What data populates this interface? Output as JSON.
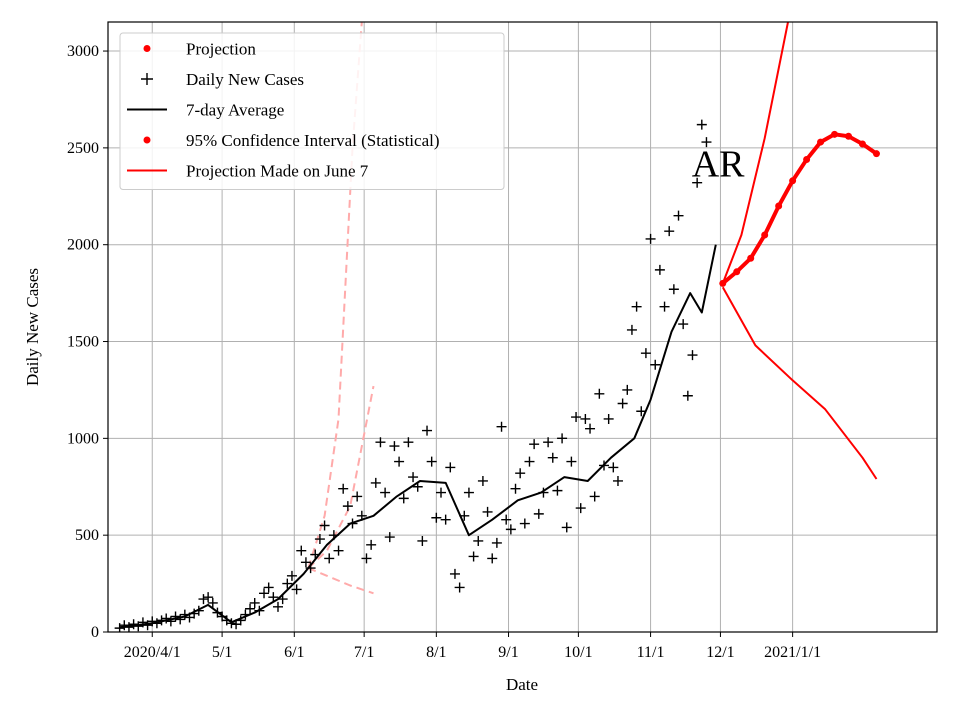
{
  "chart_data": {
    "type": "line",
    "title": "",
    "xlabel": "Date",
    "ylabel": "Daily New Cases",
    "x_range": [
      "2020-03-13",
      "2021-03-04"
    ],
    "ylim": [
      0,
      3150
    ],
    "grid": true,
    "legend_position": "top-left",
    "x_ticks": [
      {
        "date": "2020-04-01",
        "label": "2020/4/1"
      },
      {
        "date": "2020-05-01",
        "label": "5/1"
      },
      {
        "date": "2020-06-01",
        "label": "6/1"
      },
      {
        "date": "2020-07-01",
        "label": "7/1"
      },
      {
        "date": "2020-08-01",
        "label": "8/1"
      },
      {
        "date": "2020-09-01",
        "label": "9/1"
      },
      {
        "date": "2020-10-01",
        "label": "10/1"
      },
      {
        "date": "2020-11-01",
        "label": "11/1"
      },
      {
        "date": "2020-12-01",
        "label": "12/1"
      },
      {
        "date": "2021-01-01",
        "label": "2021/1/1"
      }
    ],
    "y_ticks": [
      0,
      500,
      1000,
      1500,
      2000,
      2500,
      3000
    ],
    "annotation": {
      "text": "AR",
      "date": "2020-11-30",
      "y": 2420
    },
    "legend": [
      {
        "label": "Projection",
        "marker": "dot",
        "color": "#ff0000"
      },
      {
        "label": "Daily New Cases",
        "marker": "plus",
        "color": "#000000"
      },
      {
        "label": "7-day Average",
        "marker": "line",
        "color": "#000000"
      },
      {
        "label": "95% Confidence Interval (Statistical)",
        "marker": "dot",
        "color": "#ff0000"
      },
      {
        "label": "Projection Made on June 7",
        "marker": "line",
        "color": "#ff0000"
      }
    ],
    "series": [
      {
        "name": "Daily New Cases",
        "style": "plus",
        "color": "#000000",
        "points": [
          [
            "2020-03-18",
            20
          ],
          [
            "2020-03-20",
            35
          ],
          [
            "2020-03-22",
            25
          ],
          [
            "2020-03-24",
            40
          ],
          [
            "2020-03-26",
            30
          ],
          [
            "2020-03-28",
            50
          ],
          [
            "2020-03-30",
            35
          ],
          [
            "2020-04-01",
            55
          ],
          [
            "2020-04-03",
            45
          ],
          [
            "2020-04-05",
            60
          ],
          [
            "2020-04-07",
            70
          ],
          [
            "2020-04-09",
            55
          ],
          [
            "2020-04-11",
            80
          ],
          [
            "2020-04-13",
            65
          ],
          [
            "2020-04-15",
            90
          ],
          [
            "2020-04-17",
            75
          ],
          [
            "2020-04-19",
            95
          ],
          [
            "2020-04-21",
            110
          ],
          [
            "2020-04-23",
            170
          ],
          [
            "2020-04-25",
            180
          ],
          [
            "2020-04-27",
            150
          ],
          [
            "2020-04-29",
            100
          ],
          [
            "2020-05-01",
            80
          ],
          [
            "2020-05-03",
            60
          ],
          [
            "2020-05-05",
            45
          ],
          [
            "2020-05-07",
            40
          ],
          [
            "2020-05-09",
            60
          ],
          [
            "2020-05-11",
            90
          ],
          [
            "2020-05-13",
            120
          ],
          [
            "2020-05-15",
            150
          ],
          [
            "2020-05-17",
            110
          ],
          [
            "2020-05-19",
            200
          ],
          [
            "2020-05-21",
            230
          ],
          [
            "2020-05-23",
            180
          ],
          [
            "2020-05-25",
            130
          ],
          [
            "2020-05-27",
            170
          ],
          [
            "2020-05-29",
            250
          ],
          [
            "2020-05-31",
            290
          ],
          [
            "2020-06-02",
            220
          ],
          [
            "2020-06-04",
            420
          ],
          [
            "2020-06-06",
            360
          ],
          [
            "2020-06-08",
            330
          ],
          [
            "2020-06-10",
            400
          ],
          [
            "2020-06-12",
            480
          ],
          [
            "2020-06-14",
            550
          ],
          [
            "2020-06-16",
            380
          ],
          [
            "2020-06-18",
            500
          ],
          [
            "2020-06-20",
            420
          ],
          [
            "2020-06-22",
            740
          ],
          [
            "2020-06-24",
            650
          ],
          [
            "2020-06-26",
            560
          ],
          [
            "2020-06-28",
            700
          ],
          [
            "2020-06-30",
            600
          ],
          [
            "2020-07-02",
            380
          ],
          [
            "2020-07-04",
            450
          ],
          [
            "2020-07-06",
            770
          ],
          [
            "2020-07-08",
            980
          ],
          [
            "2020-07-10",
            720
          ],
          [
            "2020-07-12",
            490
          ],
          [
            "2020-07-14",
            960
          ],
          [
            "2020-07-16",
            880
          ],
          [
            "2020-07-18",
            690
          ],
          [
            "2020-07-20",
            980
          ],
          [
            "2020-07-22",
            800
          ],
          [
            "2020-07-24",
            750
          ],
          [
            "2020-07-26",
            470
          ],
          [
            "2020-07-28",
            1040
          ],
          [
            "2020-07-30",
            880
          ],
          [
            "2020-08-01",
            590
          ],
          [
            "2020-08-03",
            720
          ],
          [
            "2020-08-05",
            580
          ],
          [
            "2020-08-07",
            850
          ],
          [
            "2020-08-09",
            300
          ],
          [
            "2020-08-11",
            230
          ],
          [
            "2020-08-13",
            600
          ],
          [
            "2020-08-15",
            720
          ],
          [
            "2020-08-17",
            390
          ],
          [
            "2020-08-19",
            470
          ],
          [
            "2020-08-21",
            780
          ],
          [
            "2020-08-23",
            620
          ],
          [
            "2020-08-25",
            380
          ],
          [
            "2020-08-27",
            460
          ],
          [
            "2020-08-29",
            1060
          ],
          [
            "2020-08-31",
            580
          ],
          [
            "2020-09-02",
            530
          ],
          [
            "2020-09-04",
            740
          ],
          [
            "2020-09-06",
            820
          ],
          [
            "2020-09-08",
            560
          ],
          [
            "2020-09-10",
            880
          ],
          [
            "2020-09-12",
            970
          ],
          [
            "2020-09-14",
            610
          ],
          [
            "2020-09-16",
            720
          ],
          [
            "2020-09-18",
            980
          ],
          [
            "2020-09-20",
            900
          ],
          [
            "2020-09-22",
            730
          ],
          [
            "2020-09-24",
            1000
          ],
          [
            "2020-09-26",
            540
          ],
          [
            "2020-09-28",
            880
          ],
          [
            "2020-09-30",
            1110
          ],
          [
            "2020-10-02",
            640
          ],
          [
            "2020-10-04",
            1100
          ],
          [
            "2020-10-06",
            1050
          ],
          [
            "2020-10-08",
            700
          ],
          [
            "2020-10-10",
            1230
          ],
          [
            "2020-10-12",
            860
          ],
          [
            "2020-10-14",
            1100
          ],
          [
            "2020-10-16",
            850
          ],
          [
            "2020-10-18",
            780
          ],
          [
            "2020-10-20",
            1180
          ],
          [
            "2020-10-22",
            1250
          ],
          [
            "2020-10-24",
            1560
          ],
          [
            "2020-10-26",
            1680
          ],
          [
            "2020-10-28",
            1140
          ],
          [
            "2020-10-30",
            1440
          ],
          [
            "2020-11-01",
            2030
          ],
          [
            "2020-11-03",
            1380
          ],
          [
            "2020-11-05",
            1870
          ],
          [
            "2020-11-07",
            1680
          ],
          [
            "2020-11-09",
            2070
          ],
          [
            "2020-11-11",
            1770
          ],
          [
            "2020-11-13",
            2150
          ],
          [
            "2020-11-15",
            1590
          ],
          [
            "2020-11-17",
            1220
          ],
          [
            "2020-11-19",
            1430
          ],
          [
            "2020-11-21",
            2320
          ],
          [
            "2020-11-23",
            2620
          ],
          [
            "2020-11-25",
            2530
          ]
        ]
      },
      {
        "name": "7-day Average",
        "style": "line",
        "color": "#000000",
        "points": [
          [
            "2020-03-18",
            25
          ],
          [
            "2020-04-01",
            45
          ],
          [
            "2020-04-15",
            80
          ],
          [
            "2020-04-25",
            140
          ],
          [
            "2020-05-05",
            50
          ],
          [
            "2020-05-15",
            100
          ],
          [
            "2020-05-25",
            170
          ],
          [
            "2020-06-05",
            300
          ],
          [
            "2020-06-15",
            450
          ],
          [
            "2020-06-25",
            560
          ],
          [
            "2020-07-05",
            600
          ],
          [
            "2020-07-15",
            700
          ],
          [
            "2020-07-25",
            780
          ],
          [
            "2020-08-05",
            770
          ],
          [
            "2020-08-15",
            500
          ],
          [
            "2020-08-25",
            580
          ],
          [
            "2020-09-05",
            680
          ],
          [
            "2020-09-15",
            720
          ],
          [
            "2020-09-25",
            800
          ],
          [
            "2020-10-05",
            780
          ],
          [
            "2020-10-15",
            900
          ],
          [
            "2020-10-25",
            1000
          ],
          [
            "2020-11-01",
            1200
          ],
          [
            "2020-11-10",
            1550
          ],
          [
            "2020-11-18",
            1750
          ],
          [
            "2020-11-23",
            1650
          ],
          [
            "2020-11-29",
            2000
          ]
        ]
      },
      {
        "name": "Projection",
        "style": "dots",
        "color": "#ff0000",
        "points": [
          [
            "2020-12-02",
            1800
          ],
          [
            "2020-12-08",
            1860
          ],
          [
            "2020-12-14",
            1930
          ],
          [
            "2020-12-20",
            2050
          ],
          [
            "2020-12-26",
            2200
          ],
          [
            "2021-01-01",
            2330
          ],
          [
            "2021-01-07",
            2440
          ],
          [
            "2021-01-13",
            2530
          ],
          [
            "2021-01-19",
            2570
          ],
          [
            "2021-01-25",
            2560
          ],
          [
            "2021-01-31",
            2520
          ],
          [
            "2021-02-06",
            2470
          ]
        ]
      },
      {
        "name": "95% Confidence Interval (Statistical)",
        "style": "line",
        "color": "#ff0000",
        "points": [
          [
            "2020-12-02",
            1800
          ],
          [
            "2020-12-10",
            2050
          ],
          [
            "2020-12-20",
            2550
          ],
          [
            "2020-12-30",
            3150
          ]
        ]
      },
      {
        "name": "95% Confidence Interval (Statistical)",
        "style": "line",
        "color": "#ff0000",
        "points": [
          [
            "2020-12-02",
            1780
          ],
          [
            "2020-12-16",
            1480
          ],
          [
            "2021-01-01",
            1300
          ],
          [
            "2021-01-15",
            1150
          ],
          [
            "2021-01-31",
            900
          ],
          [
            "2021-02-06",
            790
          ]
        ]
      },
      {
        "name": "Projection Made on June 7",
        "style": "dashed",
        "color": "#ffaaaa",
        "points": [
          [
            "2020-06-07",
            330
          ],
          [
            "2020-06-15",
            420
          ],
          [
            "2020-06-25",
            650
          ],
          [
            "2020-07-05",
            1270
          ]
        ]
      },
      {
        "name": "Projection Made on June 7",
        "style": "dashed",
        "color": "#ffaaaa",
        "points": [
          [
            "2020-06-07",
            330
          ],
          [
            "2020-06-14",
            600
          ],
          [
            "2020-06-20",
            1100
          ],
          [
            "2020-06-26",
            2500
          ],
          [
            "2020-06-30",
            3150
          ]
        ]
      },
      {
        "name": "Projection Made on June 7",
        "style": "dashed",
        "color": "#ffaaaa",
        "points": [
          [
            "2020-06-07",
            330
          ],
          [
            "2020-06-15",
            290
          ],
          [
            "2020-06-25",
            240
          ],
          [
            "2020-07-05",
            200
          ]
        ]
      }
    ]
  }
}
